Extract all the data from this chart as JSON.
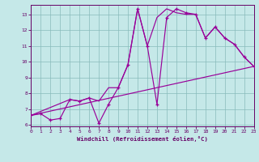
{
  "xlabel": "Windchill (Refroidissement éolien,°C)",
  "bg_color": "#c5e8e8",
  "line_color": "#990099",
  "grid_color": "#88bbbb",
  "xlim": [
    0,
    23
  ],
  "ylim": [
    5.9,
    13.6
  ],
  "xticks": [
    0,
    1,
    2,
    3,
    4,
    5,
    6,
    7,
    8,
    9,
    10,
    11,
    12,
    13,
    14,
    15,
    16,
    17,
    18,
    19,
    20,
    21,
    22,
    23
  ],
  "yticks": [
    6,
    7,
    8,
    9,
    10,
    11,
    12,
    13
  ],
  "main_x": [
    0,
    1,
    2,
    3,
    4,
    5,
    6,
    7,
    8,
    9,
    10,
    11,
    12,
    13,
    14,
    15,
    16,
    17,
    18,
    19,
    20,
    21,
    22,
    23
  ],
  "main_y": [
    6.6,
    6.7,
    6.3,
    6.4,
    7.6,
    7.5,
    7.7,
    6.1,
    7.3,
    8.35,
    9.8,
    13.35,
    11.0,
    7.3,
    12.8,
    13.35,
    13.1,
    13.0,
    11.5,
    12.2,
    11.5,
    11.1,
    10.3,
    9.7
  ],
  "line1_x": [
    0,
    23
  ],
  "line1_y": [
    6.6,
    9.7
  ],
  "line2_x": [
    0,
    4,
    5,
    6,
    7,
    8,
    9,
    10,
    11,
    12,
    13,
    14,
    15,
    16,
    17,
    18,
    19,
    20,
    21,
    22,
    23
  ],
  "line2_y": [
    6.6,
    7.6,
    7.5,
    7.7,
    7.5,
    8.35,
    8.35,
    9.8,
    13.35,
    11.0,
    12.8,
    13.35,
    13.1,
    13.0,
    13.0,
    11.5,
    12.2,
    11.5,
    11.1,
    10.3,
    9.7
  ]
}
